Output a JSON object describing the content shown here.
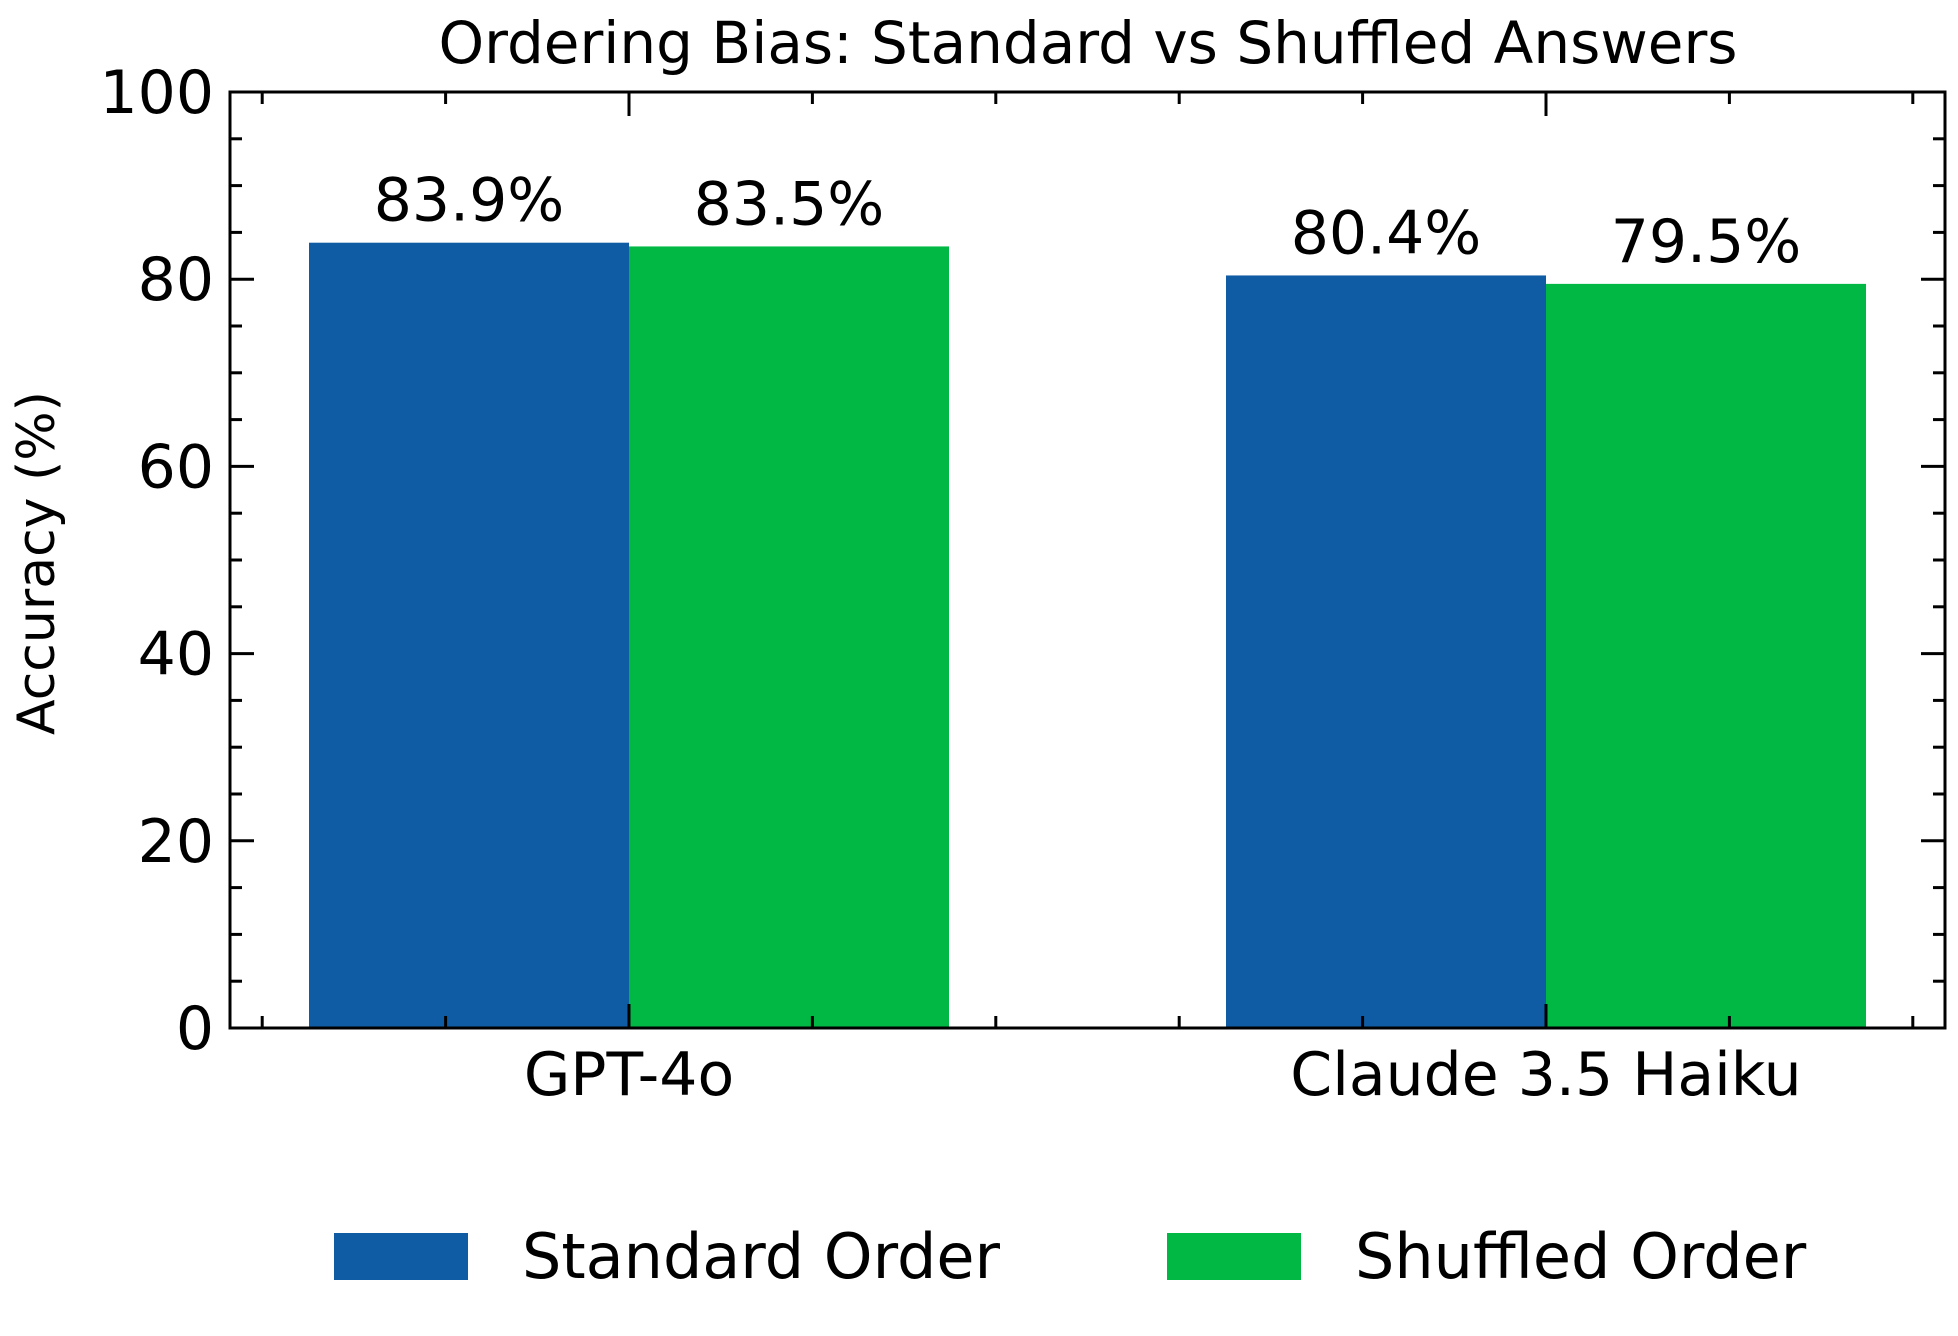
{
  "chart_data": {
    "type": "bar",
    "title": "Ordering Bias: Standard vs Shuffled Answers",
    "xlabel": "",
    "ylabel": "Accuracy (%)",
    "ylim": [
      0,
      100
    ],
    "yticks": [
      "0",
      "20",
      "40",
      "60",
      "80",
      "100"
    ],
    "categories": [
      "GPT-4o",
      "Claude 3.5 Haiku"
    ],
    "series": [
      {
        "name": "Standard Order",
        "color": "#0f5ca5",
        "values": [
          83.9,
          80.4
        ],
        "labels": [
          "83.9%",
          "80.4%"
        ]
      },
      {
        "name": "Shuffled Order",
        "color": "#00b843",
        "values": [
          83.5,
          79.5
        ],
        "labels": [
          "83.5%",
          "79.5%"
        ]
      }
    ],
    "legend_position": "bottom-center",
    "grid": false
  }
}
